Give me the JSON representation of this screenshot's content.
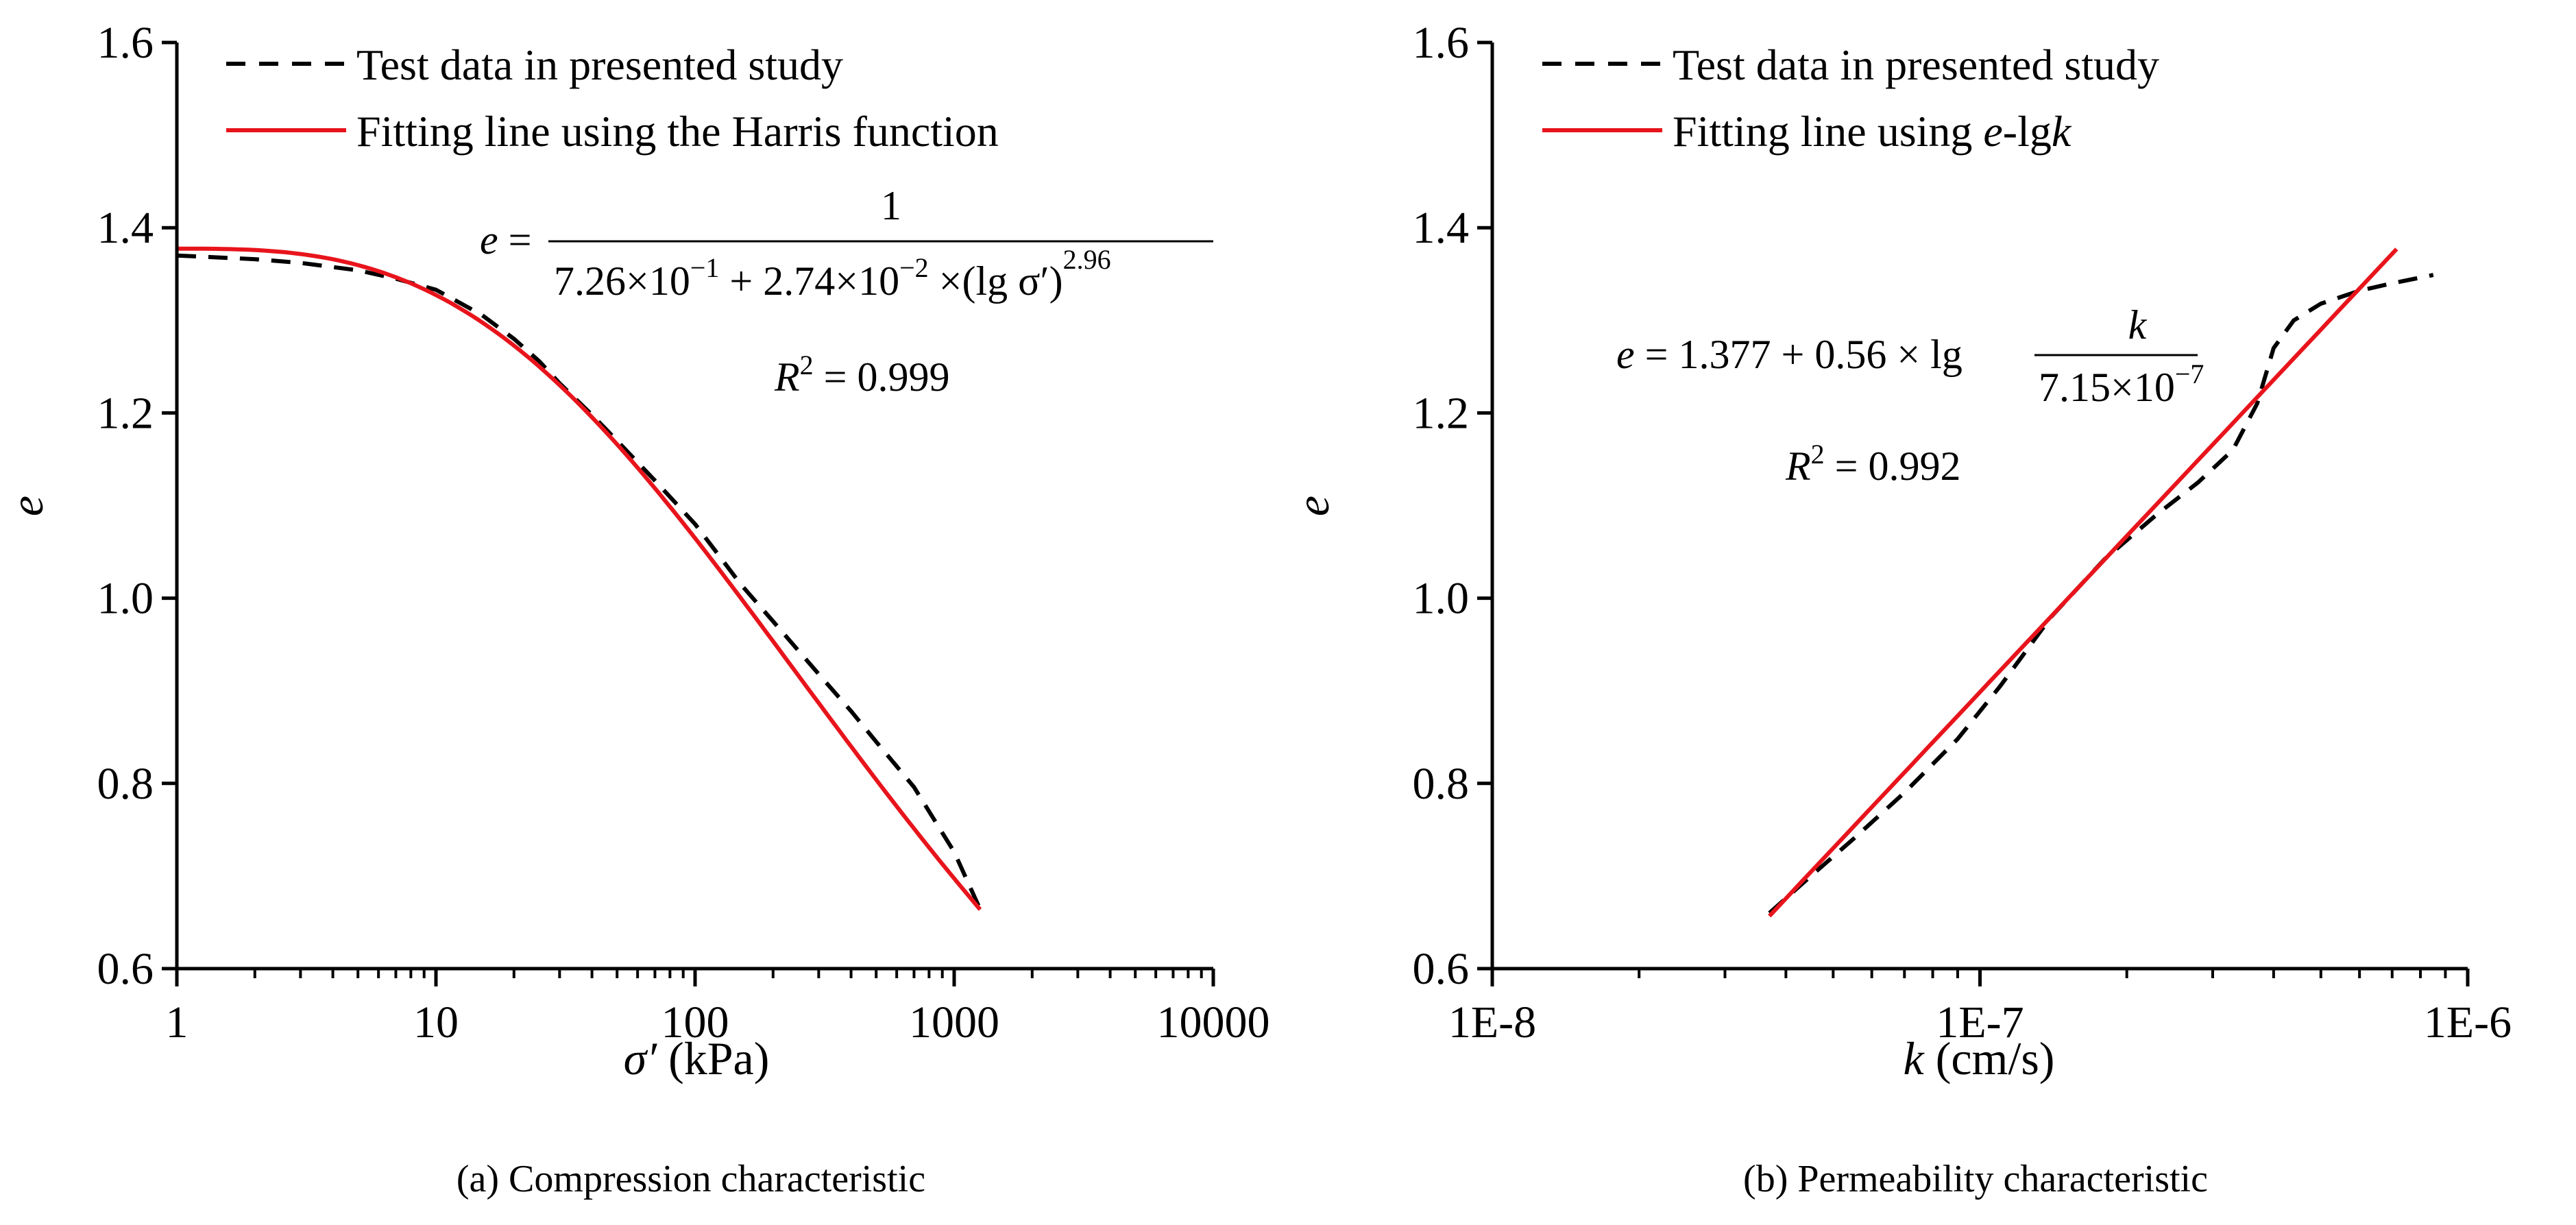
{
  "chart_data": [
    {
      "type": "line",
      "panel": "a",
      "caption": "(a) Compression characteristic",
      "xlabel_symbol": "σ′",
      "xlabel_unit": "(kPa)",
      "ylabel": "e",
      "xscale": "log",
      "xlim": [
        1,
        10000
      ],
      "ylim": [
        0.6,
        1.6
      ],
      "yticks": [
        "0.6",
        "0.8",
        "1.0",
        "1.2",
        "1.4",
        "1.6"
      ],
      "xticks": [
        "1",
        "10",
        "100",
        "1000",
        "10000"
      ],
      "legend": {
        "position": "top-left",
        "entries": [
          {
            "label": "Test data in presented study",
            "style": "dashed",
            "color": "#000000"
          },
          {
            "label": "Fitting line using the Harris function",
            "style": "solid",
            "color": "#e8141c"
          }
        ]
      },
      "equation": {
        "lhs": "e",
        "numerator": "1",
        "a_mantissa": "7.26",
        "a_exp": "−1",
        "b_mantissa": "2.74",
        "b_exp": "−2",
        "log_term": "lg σ′",
        "power": "2.96",
        "r2_label": "R",
        "r2_value": "= 0.999"
      },
      "series": [
        {
          "name": "Test data in presented study",
          "x": [
            1,
            2,
            3,
            5,
            7,
            10,
            15,
            20,
            25,
            30,
            40,
            50,
            70,
            100,
            150,
            200,
            300,
            400,
            500,
            700,
            1000,
            1260
          ],
          "y": [
            1.37,
            1.366,
            1.362,
            1.354,
            1.345,
            1.333,
            1.306,
            1.28,
            1.256,
            1.232,
            1.198,
            1.17,
            1.127,
            1.08,
            1.015,
            0.975,
            0.918,
            0.878,
            0.845,
            0.796,
            0.726,
            0.664
          ]
        },
        {
          "name": "Fitting line using the Harris function",
          "formula": "harris",
          "a": 0.726,
          "b": 0.0274,
          "c": 2.96,
          "x_range": [
            1,
            1260
          ]
        }
      ]
    },
    {
      "type": "line",
      "panel": "b",
      "caption": "(b) Permeability characteristic",
      "xlabel_symbol": "k",
      "xlabel_unit": "(cm/s)",
      "ylabel": "e",
      "xscale": "log",
      "xlim": [
        1e-08,
        1e-06
      ],
      "ylim": [
        0.6,
        1.6
      ],
      "yticks": [
        "0.6",
        "0.8",
        "1.0",
        "1.2",
        "1.4",
        "1.6"
      ],
      "xticks": [
        "1E-8",
        "1E-7",
        "1E-6"
      ],
      "legend": {
        "position": "top-left",
        "entries": [
          {
            "label_prefix": "Test data in presented study",
            "style": "dashed",
            "color": "#000000"
          },
          {
            "label_prefix": "Fitting line using ",
            "label_var1": "e",
            "label_mid": "-lg",
            "label_var2": "k",
            "style": "solid",
            "color": "#e8141c"
          }
        ]
      },
      "equation": {
        "lhs": "e",
        "constant": "= 1.377 + 0.56 × lg",
        "numerator": "k",
        "denominator": "7.15×10",
        "den_exp": "−7",
        "r2_label": "R",
        "r2_value": "= 0.992"
      },
      "series": [
        {
          "name": "Test data in presented study",
          "x": [
            3.7e-08,
            4.5e-08,
            5.5e-08,
            7e-08,
            9e-08,
            1.1e-07,
            1.4e-07,
            1.8e-07,
            2.3e-07,
            2.8e-07,
            3.3e-07,
            3.7e-07,
            4e-07,
            4.4e-07,
            5e-07,
            6e-07,
            7e-07,
            8.5e-07
          ],
          "y": [
            0.66,
            0.7,
            0.74,
            0.79,
            0.848,
            0.905,
            0.98,
            1.042,
            1.09,
            1.125,
            1.16,
            1.21,
            1.27,
            1.3,
            1.318,
            1.332,
            1.34,
            1.349
          ]
        },
        {
          "name": "Fitting line using e-lgk",
          "formula": "log-linear",
          "e0": 1.377,
          "slope": 0.56,
          "k0": 7.15e-07,
          "x_range": [
            3.7e-08,
            7.15e-07
          ]
        }
      ]
    }
  ]
}
